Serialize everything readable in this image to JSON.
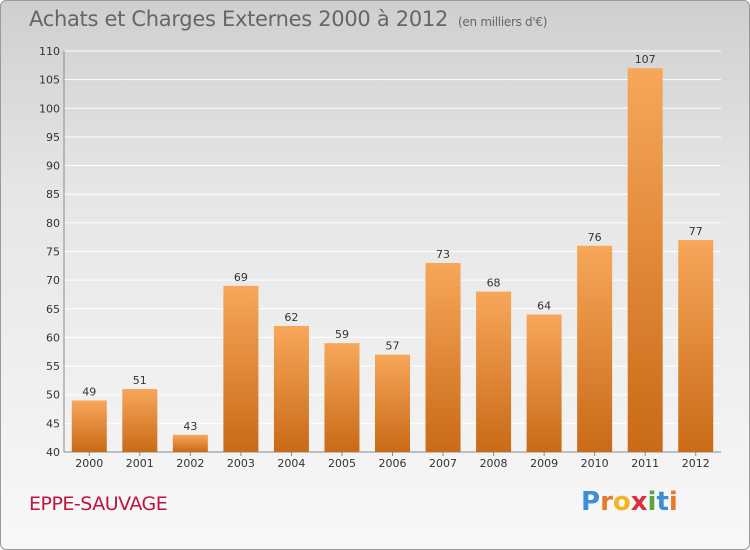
{
  "title": "Achats et Charges Externes 2000 à 2012",
  "subtitle": "(en milliers d'€)",
  "commune": "EPPE-SAUVAGE",
  "logo": {
    "letters": [
      "P",
      "r",
      "o",
      "x",
      "i",
      "t",
      "i"
    ],
    "colors": [
      "#3c8fd6",
      "#e8792a",
      "#f2b51f",
      "#d8303f",
      "#5aa83a",
      "#3c8fd6",
      "#e8792a"
    ]
  },
  "colors": {
    "bar_top": "#f7a75a",
    "bar_bottom": "#c96a16",
    "axis_text": "#333333",
    "grid": "#ffffff",
    "title_text": "#666666",
    "commune_text": "#c01440"
  },
  "chart_data": {
    "type": "bar",
    "categories": [
      "2000",
      "2001",
      "2002",
      "2003",
      "2004",
      "2005",
      "2006",
      "2007",
      "2008",
      "2009",
      "2010",
      "2011",
      "2012"
    ],
    "values": [
      49,
      51,
      43,
      69,
      62,
      59,
      57,
      73,
      68,
      64,
      76,
      107,
      77
    ],
    "ylim": [
      40,
      110
    ],
    "yticks": [
      40,
      45,
      50,
      55,
      60,
      65,
      70,
      75,
      80,
      85,
      90,
      95,
      100,
      105,
      110
    ],
    "grid": true,
    "xlabel": "",
    "ylabel": ""
  }
}
